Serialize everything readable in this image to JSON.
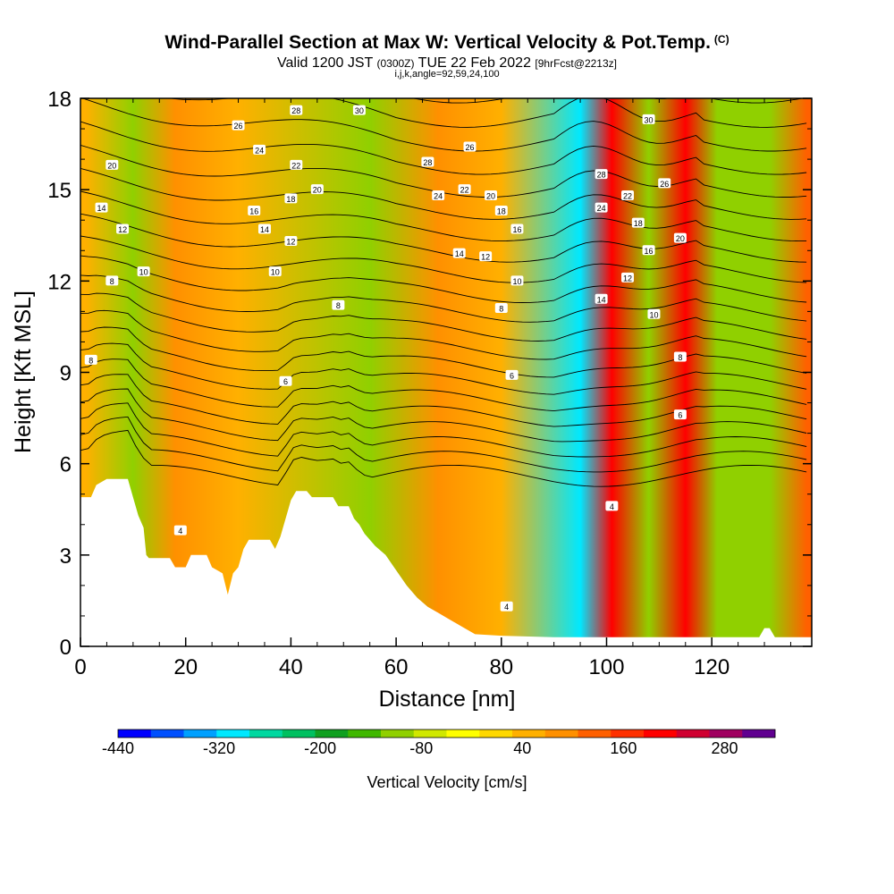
{
  "header": {
    "title_main": "Wind-Parallel Section at Max W: Vertical Velocity & Pot.Temp.",
    "title_tag": "(C)",
    "valid_prefix": "Valid 1200 JST",
    "valid_utc": "(0300Z)",
    "valid_date": "TUE 22 Feb 2022",
    "forecast": "[9hrFcst@2213z]",
    "indices": "i,j,k,angle=92,59,24,100"
  },
  "chart_data": {
    "type": "heatmap",
    "title": "Wind-Parallel Section at Max W: Vertical Velocity & Pot.Temp.",
    "xlabel": "Distance [nm]",
    "ylabel": "Height [Kft MSL]",
    "xlim": [
      0,
      139
    ],
    "ylim": [
      0,
      18
    ],
    "x_ticks": [
      0,
      20,
      40,
      60,
      80,
      100,
      120
    ],
    "y_ticks": [
      0,
      3,
      6,
      9,
      12,
      15,
      18
    ],
    "colorbar": {
      "label": "Vertical Velocity [cm/s]",
      "tick_labels": [
        "-440",
        "-320",
        "-200",
        "-80",
        "40",
        "160",
        "280"
      ],
      "tick_values": [
        -440,
        -320,
        -200,
        -80,
        40,
        160,
        280
      ],
      "min": -440,
      "max": 340,
      "step": 40,
      "colors": [
        "#0000ff",
        "#0050ff",
        "#00a0ff",
        "#00e8ff",
        "#00d8a0",
        "#00c060",
        "#10a020",
        "#40b800",
        "#90d000",
        "#d0e800",
        "#ffff00",
        "#ffd800",
        "#ffb000",
        "#ff9000",
        "#ff6000",
        "#ff3000",
        "#ff0000",
        "#d00030",
        "#a00060",
        "#600090"
      ]
    },
    "terrain": [
      [
        0,
        4.9
      ],
      [
        2,
        4.9
      ],
      [
        3,
        5.3
      ],
      [
        5,
        5.5
      ],
      [
        9,
        5.5
      ],
      [
        10,
        4.9
      ],
      [
        11,
        4.3
      ],
      [
        12,
        3.9
      ],
      [
        12.5,
        3.0
      ],
      [
        13,
        2.9
      ],
      [
        17,
        2.9
      ],
      [
        18,
        2.6
      ],
      [
        20,
        2.6
      ],
      [
        21,
        3.0
      ],
      [
        24,
        3.0
      ],
      [
        25,
        2.6
      ],
      [
        27,
        2.4
      ],
      [
        28,
        1.7
      ],
      [
        29,
        2.4
      ],
      [
        30,
        2.6
      ],
      [
        31,
        3.2
      ],
      [
        32,
        3.5
      ],
      [
        36,
        3.5
      ],
      [
        37,
        3.2
      ],
      [
        38,
        3.6
      ],
      [
        39,
        4.2
      ],
      [
        40,
        4.8
      ],
      [
        41,
        5.1
      ],
      [
        43,
        5.1
      ],
      [
        44,
        4.9
      ],
      [
        48,
        4.9
      ],
      [
        49,
        4.6
      ],
      [
        51,
        4.6
      ],
      [
        52,
        4.2
      ],
      [
        53,
        4.0
      ],
      [
        54,
        3.7
      ],
      [
        55,
        3.5
      ],
      [
        56,
        3.3
      ],
      [
        58,
        3.0
      ],
      [
        60,
        2.5
      ],
      [
        62,
        2.0
      ],
      [
        64,
        1.6
      ],
      [
        66,
        1.3
      ],
      [
        68,
        1.1
      ],
      [
        70,
        0.9
      ],
      [
        73,
        0.6
      ],
      [
        75,
        0.4
      ],
      [
        80,
        0.35
      ],
      [
        90,
        0.3
      ],
      [
        100,
        0.3
      ],
      [
        110,
        0.3
      ],
      [
        120,
        0.3
      ],
      [
        129,
        0.3
      ],
      [
        130,
        0.6
      ],
      [
        131,
        0.6
      ],
      [
        132,
        0.3
      ],
      [
        139,
        0.3
      ]
    ],
    "velocity_field": [
      {
        "x": 1,
        "value": 60
      },
      {
        "x": 10,
        "value": -100
      },
      {
        "x": 18,
        "value": 80
      },
      {
        "x": 30,
        "value": 40
      },
      {
        "x": 55,
        "value": -120
      },
      {
        "x": 68,
        "value": 80
      },
      {
        "x": 80,
        "value": 60
      },
      {
        "x": 95,
        "value": -320
      },
      {
        "x": 101,
        "value": 220
      },
      {
        "x": 108,
        "value": -120
      },
      {
        "x": 115,
        "value": 220
      },
      {
        "x": 121,
        "value": -120
      },
      {
        "x": 131,
        "value": -100
      },
      {
        "x": 138,
        "value": 120
      }
    ],
    "theta_labels": [
      {
        "text": "28",
        "x": 41,
        "y": 17.6
      },
      {
        "text": "30",
        "x": 53,
        "y": 17.6
      },
      {
        "text": "26",
        "x": 30,
        "y": 17.1
      },
      {
        "text": "24",
        "x": 34,
        "y": 16.3
      },
      {
        "text": "22",
        "x": 41,
        "y": 15.8
      },
      {
        "text": "20",
        "x": 45,
        "y": 15.0
      },
      {
        "text": "18",
        "x": 40,
        "y": 14.7
      },
      {
        "text": "16",
        "x": 33,
        "y": 14.3
      },
      {
        "text": "14",
        "x": 35,
        "y": 13.7
      },
      {
        "text": "12",
        "x": 40,
        "y": 13.3
      },
      {
        "text": "10",
        "x": 37,
        "y": 12.3
      },
      {
        "text": "20",
        "x": 6,
        "y": 15.8
      },
      {
        "text": "14",
        "x": 4,
        "y": 14.4
      },
      {
        "text": "12",
        "x": 8,
        "y": 13.7
      },
      {
        "text": "10",
        "x": 12,
        "y": 12.3
      },
      {
        "text": "8",
        "x": 6,
        "y": 12.0
      },
      {
        "text": "8",
        "x": 49,
        "y": 11.2
      },
      {
        "text": "8",
        "x": 2,
        "y": 9.4
      },
      {
        "text": "6",
        "x": 39,
        "y": 8.7
      },
      {
        "text": "4",
        "x": 19,
        "y": 3.8
      },
      {
        "text": "28",
        "x": 66,
        "y": 15.9
      },
      {
        "text": "26",
        "x": 74,
        "y": 16.4
      },
      {
        "text": "24",
        "x": 68,
        "y": 14.8
      },
      {
        "text": "22",
        "x": 73,
        "y": 15.0
      },
      {
        "text": "20",
        "x": 78,
        "y": 14.8
      },
      {
        "text": "18",
        "x": 80,
        "y": 14.3
      },
      {
        "text": "16",
        "x": 83,
        "y": 13.7
      },
      {
        "text": "14",
        "x": 72,
        "y": 12.9
      },
      {
        "text": "12",
        "x": 77,
        "y": 12.8
      },
      {
        "text": "10",
        "x": 83,
        "y": 12.0
      },
      {
        "text": "8",
        "x": 80,
        "y": 11.1
      },
      {
        "text": "6",
        "x": 82,
        "y": 8.9
      },
      {
        "text": "4",
        "x": 81,
        "y": 1.3
      },
      {
        "text": "28",
        "x": 99,
        "y": 15.5
      },
      {
        "text": "24",
        "x": 99,
        "y": 14.4
      },
      {
        "text": "22",
        "x": 104,
        "y": 14.8
      },
      {
        "text": "18",
        "x": 106,
        "y": 13.9
      },
      {
        "text": "16",
        "x": 108,
        "y": 13.0
      },
      {
        "text": "14",
        "x": 99,
        "y": 11.4
      },
      {
        "text": "12",
        "x": 104,
        "y": 12.1
      },
      {
        "text": "10",
        "x": 109,
        "y": 10.9
      },
      {
        "text": "30",
        "x": 108,
        "y": 17.3
      },
      {
        "text": "26",
        "x": 111,
        "y": 15.2
      },
      {
        "text": "20",
        "x": 114,
        "y": 13.4
      },
      {
        "text": "8",
        "x": 114,
        "y": 9.5
      },
      {
        "text": "6",
        "x": 114,
        "y": 7.6
      },
      {
        "text": "4",
        "x": 101,
        "y": 4.6
      }
    ],
    "theta_contour_levels": [
      4,
      6,
      8,
      10,
      12,
      14,
      16,
      18,
      20,
      22,
      24,
      26,
      28,
      30
    ]
  }
}
